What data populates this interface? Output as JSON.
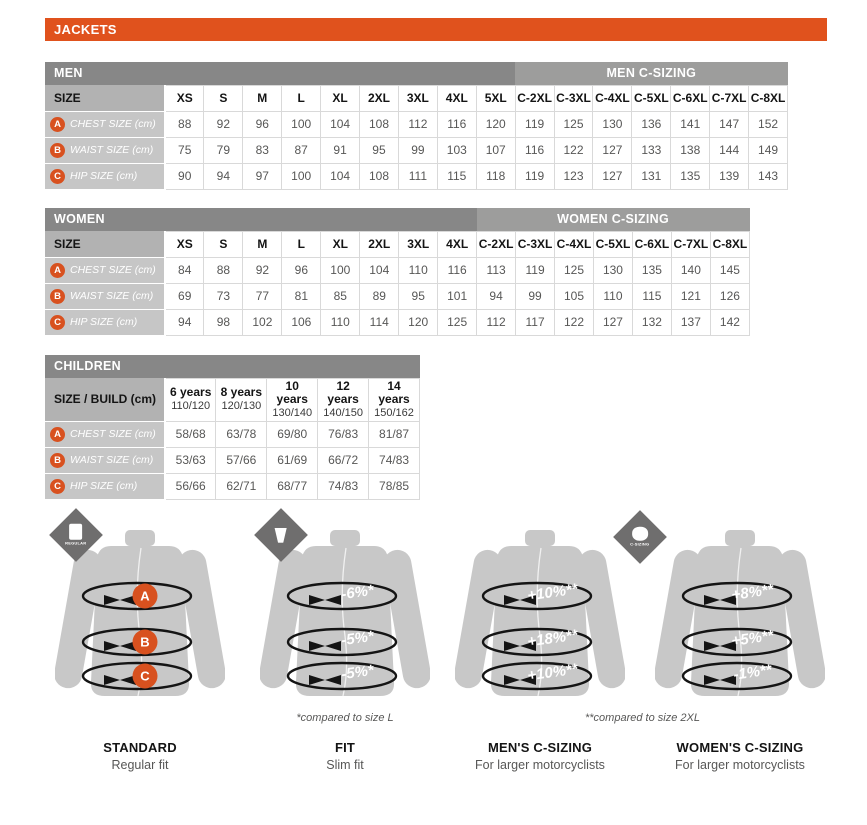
{
  "page": {
    "title": "JACKETS"
  },
  "colors": {
    "accent_orange": "#E0521D",
    "dot_orange": "#D8511F",
    "header_dark_gray": "#878787",
    "header_light_gray": "#9D9D9C",
    "size_row_gray": "#B2B2B2",
    "label_cell_gray": "#C6C6C6",
    "value_text_gray": "#575756",
    "jacket_gray": "#C8C8C8",
    "badge_gray": "#6F6E6E"
  },
  "tables": [
    {
      "id": "men",
      "title": "MEN",
      "csizing_title": "MEN C-SIZING",
      "size_header": "SIZE",
      "regular_columns": [
        "XS",
        "S",
        "M",
        "L",
        "XL",
        "2XL",
        "3XL",
        "4XL",
        "5XL"
      ],
      "csizing_columns": [
        "C-2XL",
        "C-3XL",
        "C-4XL",
        "C-5XL",
        "C-6XL",
        "C-7XL",
        "C-8XL"
      ],
      "rows": [
        {
          "letter": "A",
          "label": "CHEST SIZE (cm)",
          "values": [
            "88",
            "92",
            "96",
            "100",
            "104",
            "108",
            "112",
            "116",
            "120",
            "119",
            "125",
            "130",
            "136",
            "141",
            "147",
            "152"
          ]
        },
        {
          "letter": "B",
          "label": "WAIST SIZE (cm)",
          "values": [
            "75",
            "79",
            "83",
            "87",
            "91",
            "95",
            "99",
            "103",
            "107",
            "116",
            "122",
            "127",
            "133",
            "138",
            "144",
            "149"
          ]
        },
        {
          "letter": "C",
          "label": "HIP SIZE (cm)",
          "values": [
            "90",
            "94",
            "97",
            "100",
            "104",
            "108",
            "111",
            "115",
            "118",
            "119",
            "123",
            "127",
            "131",
            "135",
            "139",
            "143"
          ]
        }
      ]
    },
    {
      "id": "women",
      "title": "WOMEN",
      "csizing_title": "WOMEN C-SIZING",
      "size_header": "SIZE",
      "regular_columns": [
        "XS",
        "S",
        "M",
        "L",
        "XL",
        "2XL",
        "3XL",
        "4XL"
      ],
      "csizing_columns": [
        "C-2XL",
        "C-3XL",
        "C-4XL",
        "C-5XL",
        "C-6XL",
        "C-7XL",
        "C-8XL"
      ],
      "rows": [
        {
          "letter": "A",
          "label": "CHEST SIZE (cm)",
          "values": [
            "84",
            "88",
            "92",
            "96",
            "100",
            "104",
            "110",
            "116",
            "113",
            "119",
            "125",
            "130",
            "135",
            "140",
            "145"
          ]
        },
        {
          "letter": "B",
          "label": "WAIST SIZE (cm)",
          "values": [
            "69",
            "73",
            "77",
            "81",
            "85",
            "89",
            "95",
            "101",
            "94",
            "99",
            "105",
            "110",
            "115",
            "121",
            "126"
          ]
        },
        {
          "letter": "C",
          "label": "HIP SIZE (cm)",
          "values": [
            "94",
            "98",
            "102",
            "106",
            "110",
            "114",
            "120",
            "125",
            "112",
            "117",
            "122",
            "127",
            "132",
            "137",
            "142"
          ]
        }
      ]
    },
    {
      "id": "children",
      "title": "CHILDREN",
      "size_header": "SIZE / BUILD (cm)",
      "age_columns": [
        {
          "age": "6 years",
          "build": "110/120"
        },
        {
          "age": "8 years",
          "build": "120/130"
        },
        {
          "age": "10 years",
          "build": "130/140"
        },
        {
          "age": "12 years",
          "build": "140/150"
        },
        {
          "age": "14 years",
          "build": "150/162"
        }
      ],
      "rows": [
        {
          "letter": "A",
          "label": "CHEST SIZE (cm)",
          "values": [
            "58/68",
            "63/78",
            "69/80",
            "76/83",
            "81/87"
          ]
        },
        {
          "letter": "B",
          "label": "WAIST SIZE (cm)",
          "values": [
            "53/63",
            "57/66",
            "61/69",
            "66/72",
            "74/83"
          ]
        },
        {
          "letter": "C",
          "label": "HIP SIZE (cm)",
          "values": [
            "56/66",
            "62/71",
            "68/77",
            "74/83",
            "78/85"
          ]
        }
      ]
    }
  ],
  "diagrams": [
    {
      "id": "standard",
      "badge": {
        "type": "regular",
        "label": "REGULAR",
        "position": "left"
      },
      "ring_style": "letters",
      "ring_labels": [
        "A",
        "B",
        "C"
      ],
      "title": "STANDARD",
      "subtitle": "Regular fit",
      "footnote": ""
    },
    {
      "id": "fit",
      "badge": {
        "type": "fit",
        "label": "",
        "position": "left"
      },
      "ring_style": "percent",
      "ring_labels": [
        "-6%*",
        "-5%*",
        "-5%*"
      ],
      "title": "FIT",
      "subtitle": "Slim fit",
      "footnote": "*compared to size L"
    },
    {
      "id": "mens-csizing",
      "badge": {
        "type": "c-sizing",
        "label": "C-SIZING",
        "position": "right"
      },
      "ring_style": "percent",
      "ring_labels": [
        "+10%**",
        "+18%**",
        "+10%**"
      ],
      "title": "MEN'S C-SIZING",
      "subtitle": "For larger motorcyclists",
      "footnote": "**compared to size 2XL"
    },
    {
      "id": "womens-csizing",
      "ring_style": "percent",
      "ring_labels": [
        "+8%**",
        "+5%**",
        "-1%**"
      ],
      "title": "WOMEN'S C-SIZING",
      "subtitle": "For larger motorcyclists",
      "footnote": ""
    }
  ]
}
